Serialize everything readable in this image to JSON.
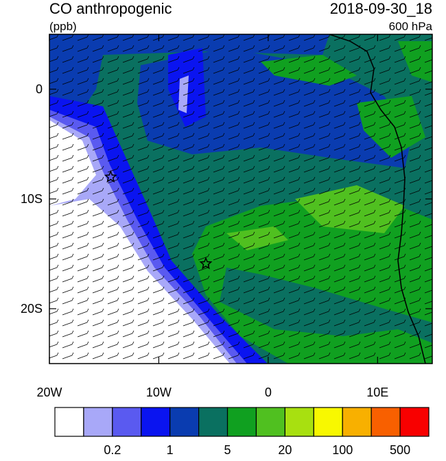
{
  "title": "CO anthropogenic",
  "units": "(ppb)",
  "time": "2018-09-30_18",
  "level": "600 hPa",
  "map": {
    "xlim": [
      -20,
      15
    ],
    "ylim": [
      -25,
      5
    ],
    "xticks": [
      {
        "value": -20,
        "label": "20W"
      },
      {
        "value": -10,
        "label": "10W"
      },
      0,
      {
        "value": 10,
        "label": "10E"
      }
    ],
    "yticks": [
      0,
      {
        "value": -10,
        "label": "10S"
      },
      {
        "value": -20,
        "label": "20S"
      }
    ],
    "stars": [
      {
        "lon": -14.4,
        "lat": -8
      },
      {
        "lon": -5.7,
        "lat": -15.9
      }
    ]
  },
  "colorbar": {
    "colors": [
      "#ffffff",
      "#a8a8f8",
      "#5a5af0",
      "#0a14f0",
      "#0a3cb0",
      "#0a7060",
      "#10a020",
      "#50c020",
      "#a8e010",
      "#f8f800",
      "#f8b000",
      "#f86000",
      "#f80000"
    ],
    "labels": [
      0.2,
      1,
      5,
      20,
      100,
      500
    ]
  }
}
